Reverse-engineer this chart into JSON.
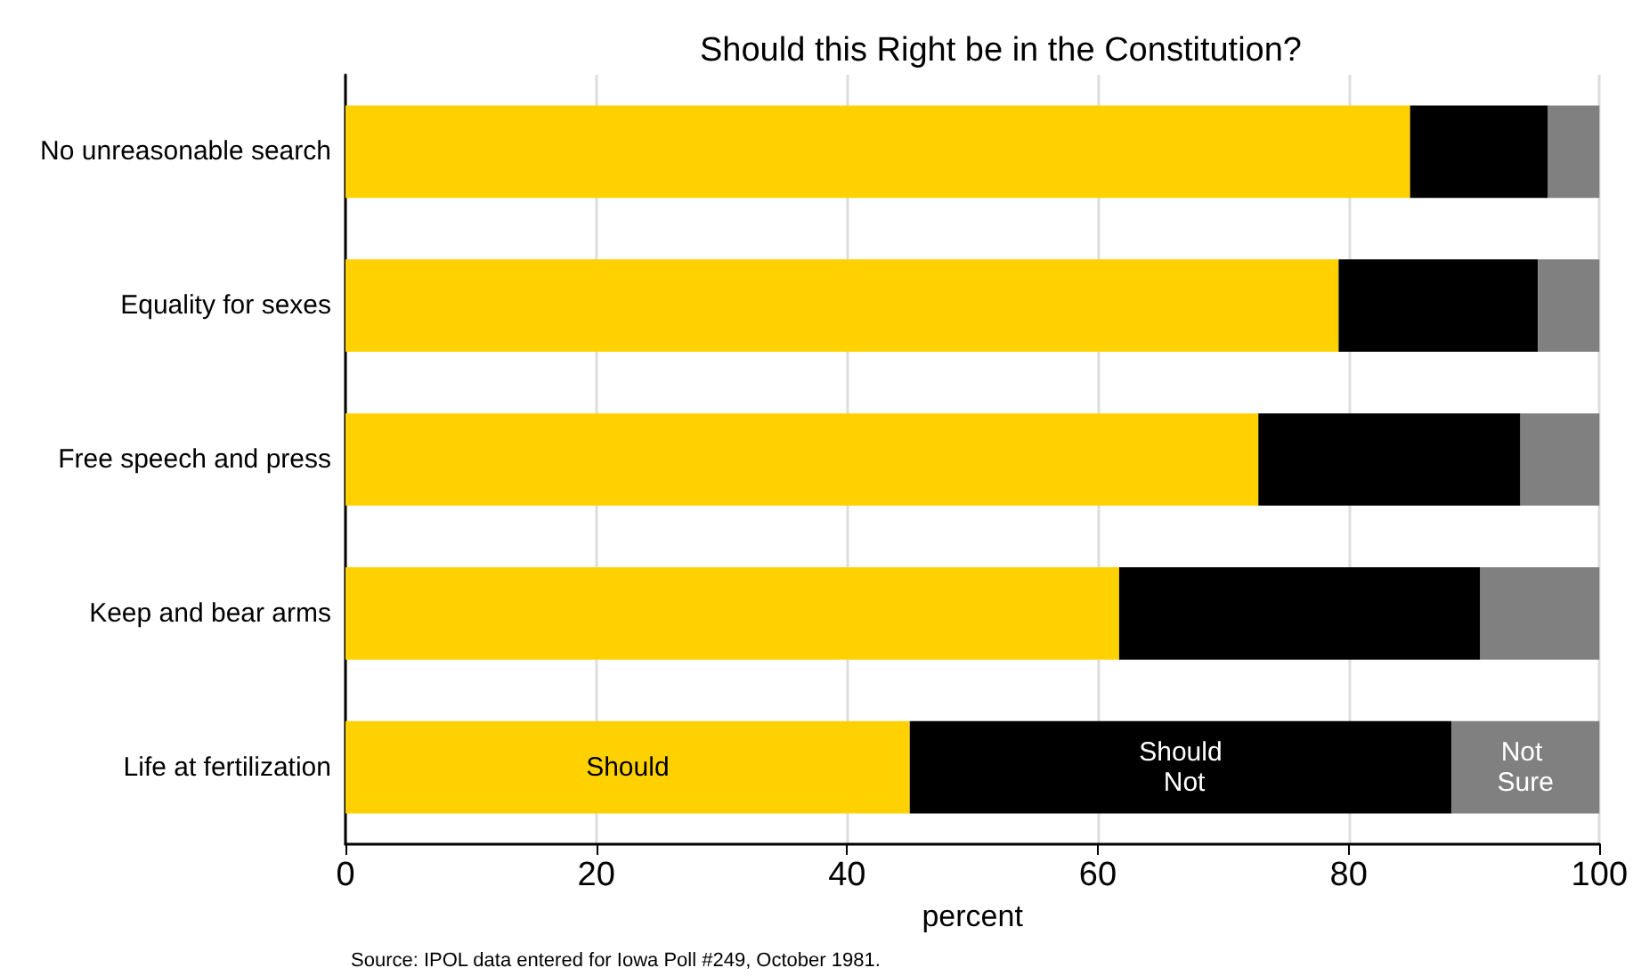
{
  "chart_data": {
    "type": "bar",
    "orientation": "horizontal",
    "stacked": true,
    "title": "Should this Right be in the Constitution?",
    "xlabel": "percent",
    "categories": [
      "No unreasonable search",
      "Equality for sexes",
      "Free speech and press",
      "Keep and bear arms",
      "Life at fertilization"
    ],
    "series": [
      {
        "name": "Should",
        "color": "#ffd100",
        "values": [
          84.9,
          79.2,
          72.8,
          61.7,
          45.0
        ]
      },
      {
        "name": "Should Not",
        "color": "#000000",
        "values": [
          11.0,
          15.9,
          20.9,
          28.8,
          43.2
        ]
      },
      {
        "name": "Not Sure",
        "color": "#808080",
        "values": [
          4.1,
          4.9,
          6.3,
          9.5,
          11.8
        ]
      }
    ],
    "xlim": [
      0,
      100
    ],
    "xticks": [
      0,
      20,
      40,
      60,
      80,
      100
    ],
    "grid": "x",
    "legend": false,
    "annotations": [
      "Source: IPOL data entered for Iowa Poll #249, October 1981."
    ]
  }
}
